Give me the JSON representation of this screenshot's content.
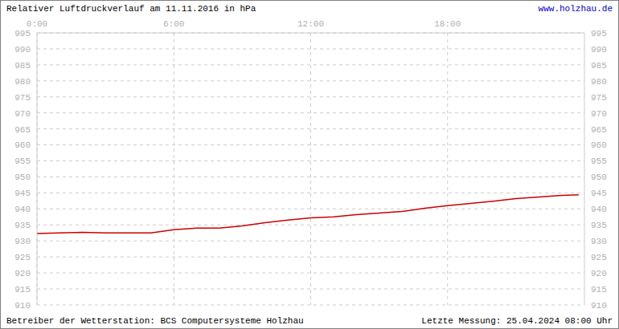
{
  "chart_data": {
    "type": "line",
    "title": "Relativer Luftdruckverlauf am 11.11.2016 in hPa",
    "source": "www.holzhau.de",
    "footer_left": "Betreiber der Wetterstation: BCS Computersysteme Holzhau",
    "footer_right": "Letzte Messung: 25.04.2024 08:00 Uhr",
    "x": [
      0,
      1,
      2,
      3,
      4,
      5,
      6,
      7,
      8,
      9,
      10,
      11,
      12,
      13,
      14,
      15,
      16,
      17,
      18,
      19,
      20,
      21,
      22,
      23,
      23.75
    ],
    "values": [
      932.3,
      932.5,
      932.7,
      932.5,
      932.5,
      932.5,
      933.5,
      934,
      934,
      934.7,
      935.7,
      936.5,
      937.2,
      937.5,
      938.2,
      938.7,
      939.2,
      940.2,
      941,
      941.7,
      942.4,
      943.2,
      943.7,
      944.2,
      944.4
    ],
    "color": "#cc0000",
    "xlim": [
      0,
      24
    ],
    "xticks": [
      {
        "value": 0,
        "label": "0:00"
      },
      {
        "value": 6,
        "label": "6:00"
      },
      {
        "value": 12,
        "label": "12:00"
      },
      {
        "value": 18,
        "label": "18:00"
      }
    ],
    "ylim": [
      910,
      995
    ],
    "yticks": [
      910,
      915,
      920,
      925,
      930,
      935,
      940,
      945,
      950,
      955,
      960,
      965,
      970,
      975,
      980,
      985,
      990,
      995
    ],
    "grid": true
  }
}
